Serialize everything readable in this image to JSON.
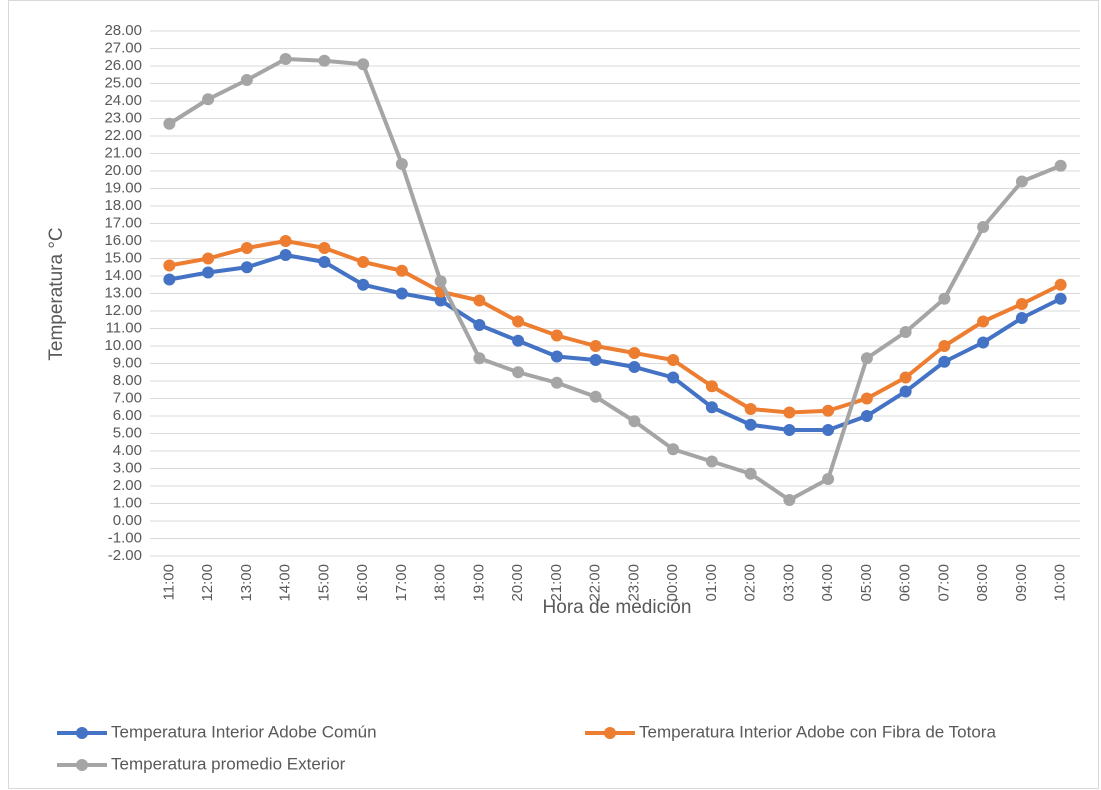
{
  "chart_data": {
    "type": "line",
    "y_label": "Temperatura °C",
    "x_label": "Hora de medición",
    "categories": [
      "11:00",
      "12:00",
      "13:00",
      "14:00",
      "15:00",
      "16:00",
      "17:00",
      "18:00",
      "19:00",
      "20:00",
      "21:00",
      "22:00",
      "23:00",
      "00:00",
      "01:00",
      "02:00",
      "03:00",
      "04:00",
      "05:00",
      "06:00",
      "07:00",
      "08:00",
      "09:00",
      "10:00"
    ],
    "series": [
      {
        "name": "Temperatura Interior Adobe Común",
        "color": "#4472c4",
        "values": [
          13.8,
          14.2,
          14.5,
          15.2,
          14.8,
          13.5,
          13.0,
          12.6,
          11.2,
          10.3,
          9.4,
          9.2,
          8.8,
          8.2,
          6.5,
          5.5,
          5.2,
          5.2,
          6.0,
          7.4,
          9.1,
          10.2,
          11.6,
          12.7
        ]
      },
      {
        "name": "Temperatura Interior Adobe con Fibra de Totora",
        "color": "#ed7d31",
        "values": [
          14.6,
          15.0,
          15.6,
          16.0,
          15.6,
          14.8,
          14.3,
          13.1,
          12.6,
          11.4,
          10.6,
          10.0,
          9.6,
          9.2,
          7.7,
          6.4,
          6.2,
          6.3,
          7.0,
          8.2,
          10.0,
          11.4,
          12.4,
          13.5
        ]
      },
      {
        "name": "Temperatura promedio Exterior",
        "color": "#a5a5a5",
        "values": [
          22.7,
          24.1,
          25.2,
          26.4,
          26.3,
          26.1,
          20.4,
          13.7,
          9.3,
          8.5,
          7.9,
          7.1,
          5.7,
          4.1,
          3.4,
          2.7,
          1.2,
          2.4,
          9.3,
          10.8,
          12.7,
          16.8,
          19.4,
          20.3
        ]
      }
    ],
    "ylim": [
      -2,
      28
    ],
    "yticks": [
      {
        "value": -2,
        "label": "-2.00"
      },
      {
        "value": -1,
        "label": "-1.00"
      },
      {
        "value": 0,
        "label": "0.00"
      },
      {
        "value": 1,
        "label": "1.00"
      },
      {
        "value": 2,
        "label": "2.00"
      },
      {
        "value": 3,
        "label": "3.00"
      },
      {
        "value": 4,
        "label": "4.00"
      },
      {
        "value": 5,
        "label": "5.00"
      },
      {
        "value": 6,
        "label": "6.00"
      },
      {
        "value": 7,
        "label": "7.00"
      },
      {
        "value": 8,
        "label": "8.00"
      },
      {
        "value": 9,
        "label": "9.00"
      },
      {
        "value": 10,
        "label": "10.00"
      },
      {
        "value": 11,
        "label": "11.00"
      },
      {
        "value": 12,
        "label": "12.00"
      },
      {
        "value": 13,
        "label": "13.00"
      },
      {
        "value": 14,
        "label": "14.00"
      },
      {
        "value": 15,
        "label": "15.00"
      },
      {
        "value": 16,
        "label": "16.00"
      },
      {
        "value": 17,
        "label": "17.00"
      },
      {
        "value": 18,
        "label": "18.00"
      },
      {
        "value": 19,
        "label": "19.00"
      },
      {
        "value": 20,
        "label": "20.00"
      },
      {
        "value": 21,
        "label": "21.00"
      },
      {
        "value": 22,
        "label": "22.00"
      },
      {
        "value": 23,
        "label": "23.00"
      },
      {
        "value": 24,
        "label": "24.00"
      },
      {
        "value": 25,
        "label": "25.00"
      },
      {
        "value": 26,
        "label": "26.00"
      },
      {
        "value": 27,
        "label": "27.00"
      },
      {
        "value": 28,
        "label": "28.00"
      }
    ],
    "grid": true,
    "legend": "bottom"
  }
}
